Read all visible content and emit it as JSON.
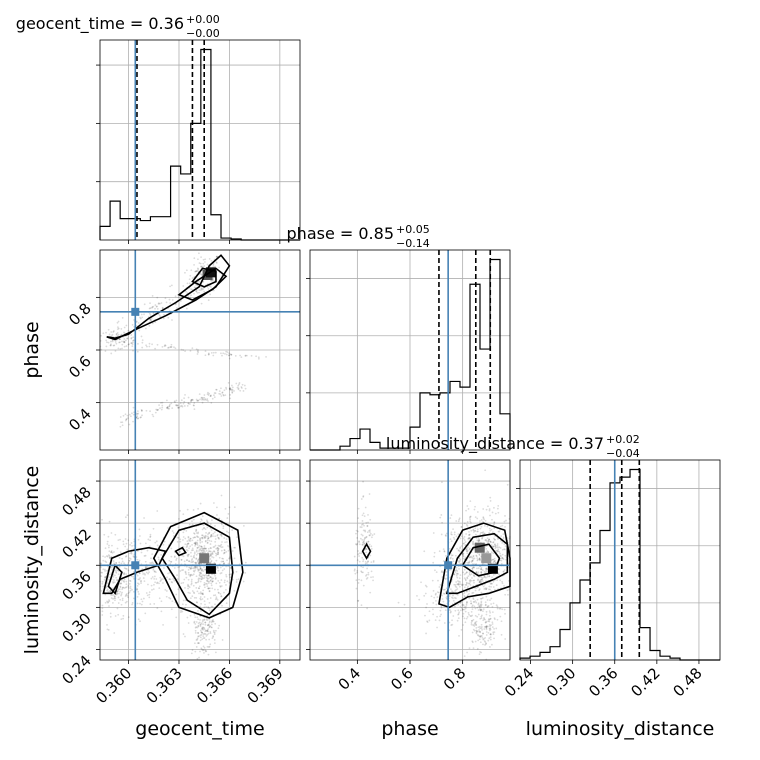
{
  "chart_data": {
    "type": "corner",
    "params": [
      "geocent_time",
      "phase",
      "luminosity_distance"
    ],
    "axis_labels": [
      "geocent_time",
      "phase",
      "luminosity_distance"
    ],
    "titles": [
      {
        "name": "geocent_time",
        "value": "0.36",
        "plus": "+0.00",
        "minus": "−0.00"
      },
      {
        "name": "phase",
        "value": "0.85",
        "plus": "+0.05",
        "minus": "−0.14"
      },
      {
        "name": "luminosity_distance",
        "value": "0.37",
        "plus": "+0.02",
        "minus": "−0.04"
      }
    ],
    "ranges": [
      [
        0.3583,
        0.3702
      ],
      [
        0.22,
        0.98
      ],
      [
        0.225,
        0.51
      ]
    ],
    "ticks": [
      {
        "values": [
          0.36,
          0.363,
          0.366,
          0.369
        ],
        "labels": [
          "0.360",
          "0.363",
          "0.366",
          "0.369"
        ]
      },
      {
        "values": [
          0.4,
          0.6,
          0.8
        ],
        "labels": [
          "0.4",
          "0.6",
          "0.8"
        ]
      },
      {
        "values": [
          0.24,
          0.3,
          0.36,
          0.42,
          0.48
        ],
        "labels": [
          "0.24",
          "0.30",
          "0.36",
          "0.42",
          "0.48"
        ]
      }
    ],
    "truths": [
      0.3604,
      0.745,
      0.36
    ],
    "quantiles": [
      [
        0.3605,
        0.3638,
        0.3645
      ],
      [
        0.71,
        0.85,
        0.905
      ],
      [
        0.325,
        0.37,
        0.395
      ]
    ],
    "histograms": [
      {
        "edges": [
          0.3583,
          0.3589,
          0.3595,
          0.3601,
          0.3607,
          0.3613,
          0.3619,
          0.3625,
          0.3631,
          0.3637,
          0.3643,
          0.3649,
          0.3655,
          0.3661,
          0.3667,
          0.3673,
          0.3679,
          0.3685,
          0.3691,
          0.3697,
          0.3702
        ],
        "counts": [
          0.07,
          0.2,
          0.11,
          0.11,
          0.1,
          0.12,
          0.12,
          0.38,
          0.34,
          0.6,
          0.98,
          0.13,
          0.01,
          0.005,
          0,
          0,
          0,
          0,
          0,
          0
        ]
      },
      {
        "edges": [
          0.22,
          0.258,
          0.296,
          0.334,
          0.372,
          0.41,
          0.448,
          0.486,
          0.524,
          0.562,
          0.6,
          0.638,
          0.676,
          0.714,
          0.752,
          0.79,
          0.828,
          0.866,
          0.904,
          0.942,
          0.98
        ],
        "counts": [
          0,
          0,
          0,
          0.02,
          0.06,
          0.11,
          0.04,
          0.01,
          0.01,
          0.01,
          0.12,
          0.3,
          0.29,
          0.3,
          0.36,
          0.33,
          0.87,
          0.53,
          1.0,
          0.19
        ]
      },
      {
        "edges": [
          0.225,
          0.2393,
          0.2535,
          0.2678,
          0.282,
          0.2963,
          0.3105,
          0.3248,
          0.339,
          0.3533,
          0.3675,
          0.3818,
          0.396,
          0.4103,
          0.4245,
          0.4388,
          0.453,
          0.4673,
          0.4815,
          0.4958,
          0.51
        ],
        "counts": [
          0.01,
          0.02,
          0.04,
          0.07,
          0.16,
          0.3,
          0.42,
          0.51,
          0.68,
          0.93,
          0.96,
          1.0,
          0.17,
          0.05,
          0.02,
          0.01,
          0,
          0,
          0,
          0
        ]
      }
    ],
    "grid": true,
    "colors": {
      "truth": "#4682b4",
      "line": "#000000",
      "grid": "#b0b0b0"
    }
  }
}
